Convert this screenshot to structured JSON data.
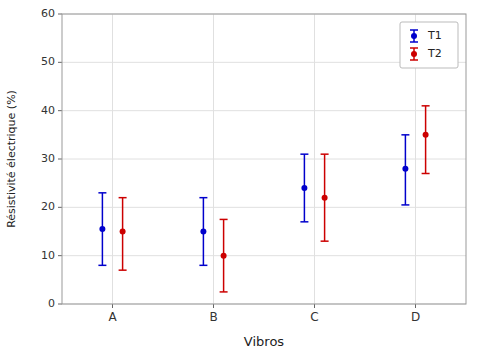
{
  "chart_data": {
    "type": "errorbar",
    "categories": [
      "A",
      "B",
      "C",
      "D"
    ],
    "series": [
      {
        "name": "T1",
        "color": "#0000CC",
        "values": [
          15.5,
          15.0,
          24.0,
          28.0
        ],
        "lower": [
          8.0,
          8.0,
          17.0,
          20.5
        ],
        "upper": [
          23.0,
          22.0,
          31.0,
          35.0
        ]
      },
      {
        "name": "T2",
        "color": "#CC0000",
        "values": [
          15.0,
          10.0,
          22.0,
          35.0
        ],
        "lower": [
          7.0,
          2.5,
          13.0,
          27.0
        ],
        "upper": [
          22.0,
          17.5,
          31.0,
          41.0
        ]
      }
    ],
    "xlabel": "Vibros",
    "ylabel": "Résistivité électrique (%)",
    "ylim": [
      0,
      60
    ],
    "yticks": [
      0,
      10,
      20,
      30,
      40,
      50,
      60
    ],
    "grid": true,
    "legend": "upper right"
  }
}
